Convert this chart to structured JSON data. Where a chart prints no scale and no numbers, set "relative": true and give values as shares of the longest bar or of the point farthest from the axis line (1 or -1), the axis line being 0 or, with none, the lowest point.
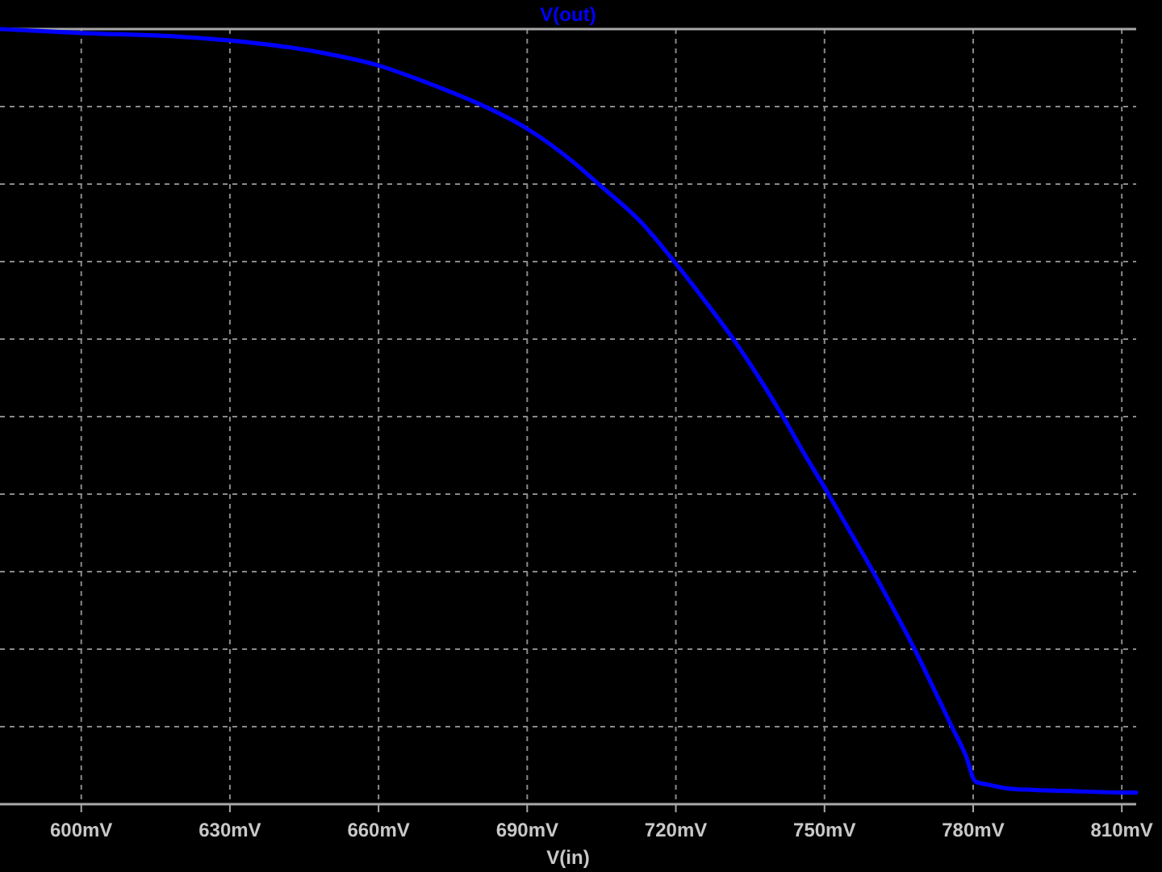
{
  "chart_data": {
    "type": "line",
    "xlabel": "V(in)",
    "x": [
      583.6,
      600.0,
      620.2,
      630.4,
      647.3,
      660.0,
      668.5,
      674.9,
      681.8,
      690.1,
      699.2,
      704.6,
      713.1,
      719.8,
      725.9,
      731.7,
      737.4,
      741.8,
      746.3,
      750.8,
      755.3,
      759.8,
      763.9,
      768.1,
      771.0,
      775.7,
      778.5,
      780.5,
      783.2,
      787.4,
      799.2,
      810.7,
      812.9
    ],
    "series": [
      {
        "name": "V(out)",
        "color": "#0000ff",
        "values": [
          1.0,
          0.995,
          0.99,
          0.985,
          0.971,
          0.953,
          0.934,
          0.918,
          0.899,
          0.871,
          0.829,
          0.799,
          0.75,
          0.699,
          0.649,
          0.599,
          0.544,
          0.498,
          0.448,
          0.4,
          0.35,
          0.3,
          0.252,
          0.201,
          0.163,
          0.1,
          0.063,
          0.029,
          0.025,
          0.02,
          0.017,
          0.015,
          0.015
        ]
      }
    ],
    "relative": true,
    "xlim": [
      583.6,
      812.9
    ],
    "xticks": [
      {
        "value": 600,
        "label": "600mV"
      },
      {
        "value": 630,
        "label": "630mV"
      },
      {
        "value": 660,
        "label": "660mV"
      },
      {
        "value": 690,
        "label": "690mV"
      },
      {
        "value": 720,
        "label": "720mV"
      },
      {
        "value": 750,
        "label": "750mV"
      },
      {
        "value": 780,
        "label": "780mV"
      },
      {
        "value": 810,
        "label": "810mV"
      }
    ],
    "grid": true,
    "legend": "top",
    "line_style": "solid"
  }
}
